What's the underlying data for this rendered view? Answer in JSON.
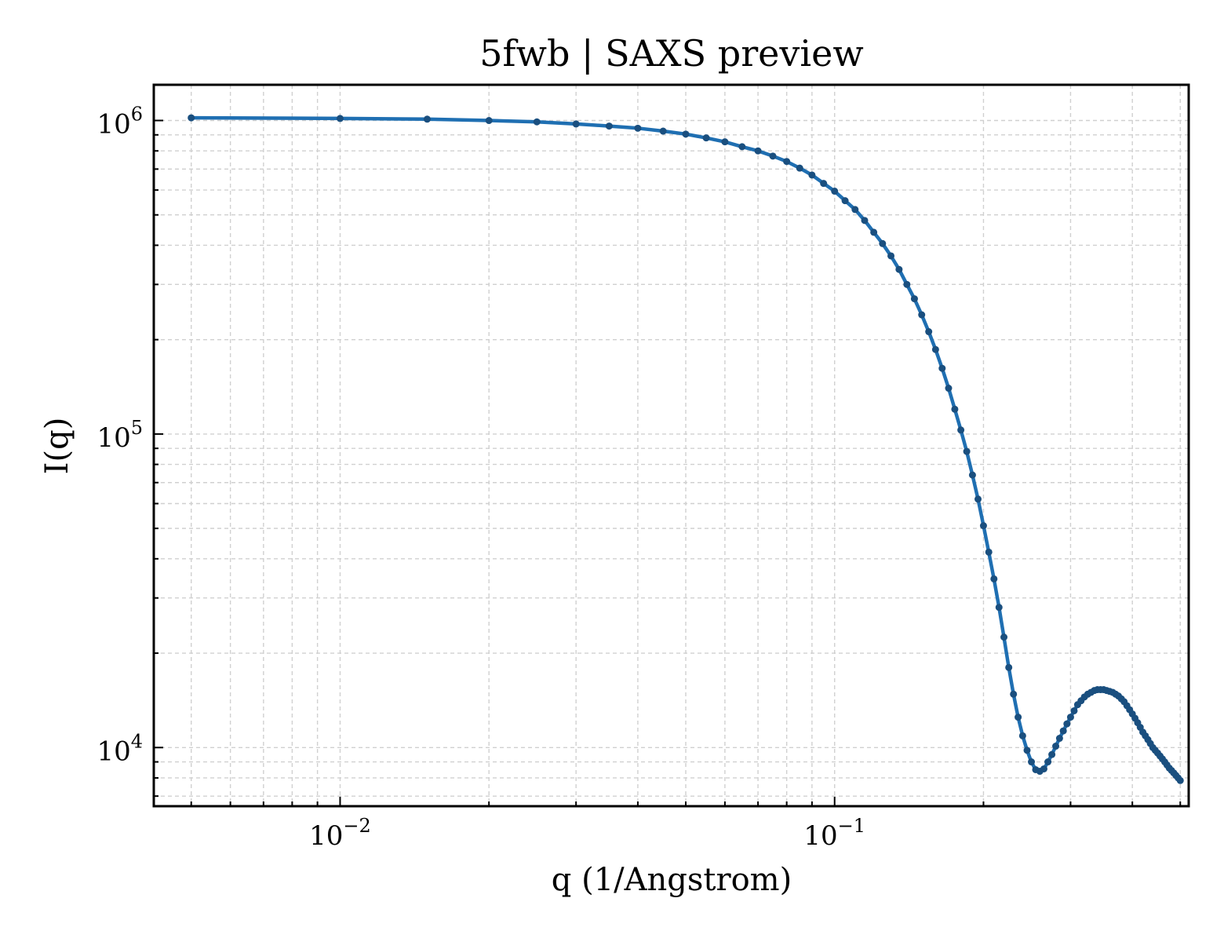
{
  "chart_data": {
    "type": "line",
    "title": "5fwb | SAXS preview",
    "xlabel": "q (1/Angstrom)",
    "ylabel": "I(q)",
    "xscale": "log",
    "yscale": "log",
    "xlim": [
      0.0042,
      0.52
    ],
    "ylim": [
      6500,
      1300000
    ],
    "grid": true,
    "colors": {
      "line": "#1f6fb2",
      "grid": "#d0d0d0",
      "axes": "#000000"
    },
    "x_ticks": [
      {
        "value": 0.01,
        "base": "10",
        "exp": "−2"
      },
      {
        "value": 0.1,
        "base": "10",
        "exp": "−1"
      }
    ],
    "y_ticks": [
      {
        "value": 10000,
        "base": "10",
        "exp": "4"
      },
      {
        "value": 100000,
        "base": "10",
        "exp": "5"
      },
      {
        "value": 1000000,
        "base": "10",
        "exp": "6"
      }
    ],
    "series": [
      {
        "x": [
          0.005,
          0.01,
          0.015,
          0.02,
          0.025,
          0.03,
          0.035,
          0.04,
          0.045,
          0.05,
          0.055,
          0.06,
          0.065,
          0.07,
          0.075,
          0.08,
          0.085,
          0.09,
          0.095,
          0.1,
          0.105,
          0.11,
          0.115,
          0.12,
          0.125,
          0.13,
          0.135,
          0.14,
          0.145,
          0.15,
          0.155,
          0.16,
          0.165,
          0.17,
          0.175,
          0.18,
          0.185,
          0.19,
          0.195,
          0.2,
          0.205,
          0.21,
          0.215,
          0.22,
          0.225,
          0.23,
          0.235,
          0.24,
          0.245,
          0.25,
          0.255,
          0.26,
          0.265,
          0.27,
          0.275,
          0.28,
          0.285,
          0.29,
          0.295,
          0.3,
          0.305,
          0.31,
          0.315,
          0.32,
          0.325,
          0.33,
          0.335,
          0.34,
          0.345,
          0.35,
          0.355,
          0.36,
          0.365,
          0.37,
          0.375,
          0.38,
          0.385,
          0.39,
          0.395,
          0.4,
          0.405,
          0.41,
          0.415,
          0.42,
          0.425,
          0.43,
          0.435,
          0.44,
          0.445,
          0.45,
          0.455,
          0.46,
          0.465,
          0.47,
          0.475,
          0.48,
          0.485,
          0.49,
          0.495,
          0.5
        ],
        "y": [
          1020000,
          1015000,
          1010000,
          1000000,
          990000,
          975000,
          960000,
          945000,
          925000,
          905000,
          880000,
          855000,
          825000,
          800000,
          770000,
          740000,
          705000,
          670000,
          630000,
          595000,
          555000,
          520000,
          480000,
          440000,
          405000,
          370000,
          335000,
          300000,
          270000,
          240000,
          212000,
          186000,
          162000,
          140000,
          120000,
          103000,
          88000,
          74000,
          62000,
          51000,
          42000,
          34500,
          28000,
          22500,
          18000,
          14800,
          12500,
          10900,
          9800,
          9000,
          8500,
          8400,
          8550,
          9000,
          9500,
          10100,
          10700,
          11300,
          11900,
          12500,
          13100,
          13700,
          14100,
          14500,
          14800,
          15000,
          15200,
          15300,
          15300,
          15300,
          15200,
          15100,
          15000,
          14800,
          14600,
          14300,
          14000,
          13600,
          13200,
          12800,
          12400,
          12000,
          11600,
          11200,
          10900,
          10600,
          10300,
          10000,
          9800,
          9600,
          9400,
          9200,
          9000,
          8800,
          8600,
          8450,
          8300,
          8150,
          8000,
          7850
        ]
      }
    ]
  }
}
